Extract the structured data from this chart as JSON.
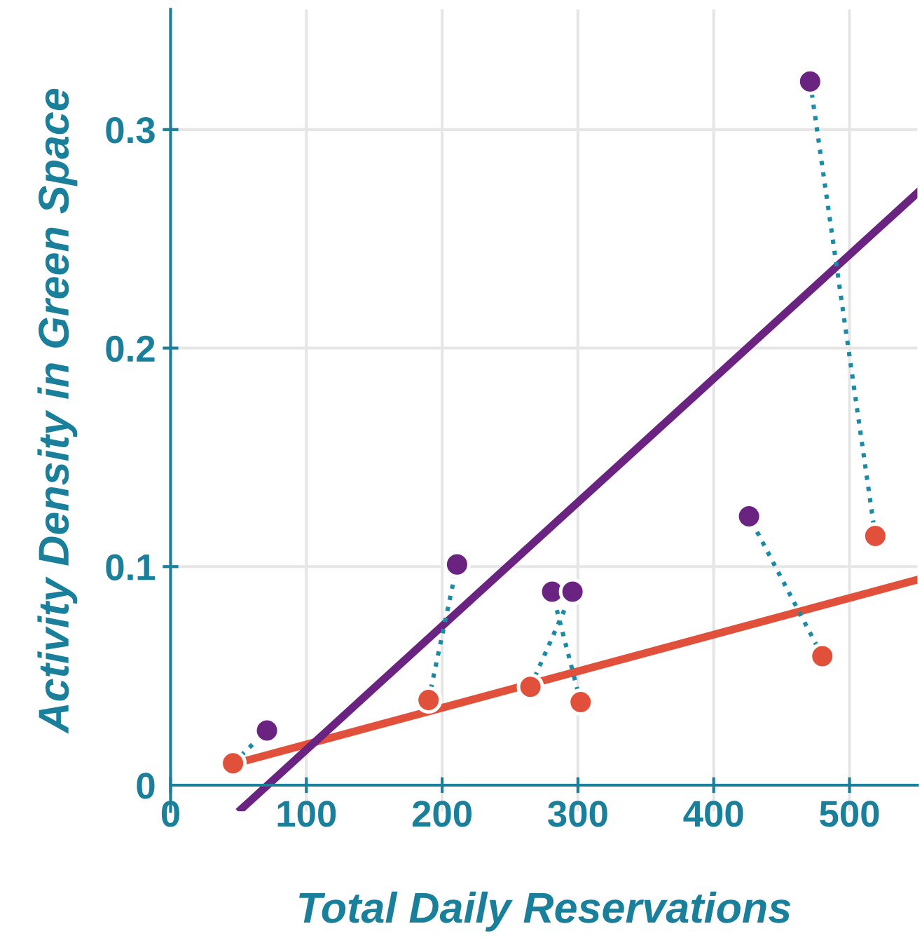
{
  "chart_data": {
    "type": "scatter",
    "xlabel": "Total Daily Reservations",
    "ylabel": "Activity Density in Green Space",
    "xlim": [
      0,
      550
    ],
    "ylim": [
      -0.012,
      0.355
    ],
    "xticks": [
      0,
      100,
      200,
      300,
      400,
      500
    ],
    "yticks": [
      0,
      0.1,
      0.2,
      0.3
    ],
    "grid": true,
    "marker": "circle",
    "series": [
      {
        "type": "line",
        "color": "#1b8aa6",
        "line_style": "dotted",
        "marker": "none",
        "x": [
          46,
          71
        ],
        "values": [
          0.01,
          0.025
        ]
      },
      {
        "type": "line",
        "color": "#1b8aa6",
        "line_style": "dotted",
        "marker": "none",
        "x": [
          190,
          211
        ],
        "values": [
          0.039,
          0.101
        ]
      },
      {
        "type": "line",
        "color": "#1b8aa6",
        "line_style": "dotted",
        "marker": "none",
        "x": [
          265,
          296
        ],
        "values": [
          0.045,
          0.0885
        ]
      },
      {
        "type": "line",
        "color": "#1b8aa6",
        "line_style": "dotted",
        "marker": "none",
        "x": [
          302,
          281
        ],
        "values": [
          0.038,
          0.0885
        ]
      },
      {
        "type": "line",
        "color": "#1b8aa6",
        "line_style": "dotted",
        "marker": "none",
        "x": [
          480,
          426
        ],
        "values": [
          0.059,
          0.123
        ]
      },
      {
        "type": "line",
        "color": "#1b8aa6",
        "line_style": "dotted",
        "marker": "none",
        "x": [
          519,
          471
        ],
        "values": [
          0.114,
          0.322
        ]
      },
      {
        "type": "line",
        "color": "#e0503a",
        "line_style": "solid",
        "marker": "none",
        "x": [
          46,
          550
        ],
        "values": [
          0.0096,
          0.094
        ]
      },
      {
        "type": "line",
        "color": "#6b2382",
        "line_style": "solid",
        "marker": "none",
        "x": [
          52,
          550
        ],
        "values": [
          -0.011,
          0.271
        ]
      },
      {
        "color": "#e0503a",
        "x": [
          46,
          190,
          265,
          302,
          480,
          519
        ],
        "values": [
          0.01,
          0.039,
          0.045,
          0.038,
          0.059,
          0.114
        ]
      },
      {
        "color": "#6b2382",
        "x": [
          71,
          211,
          281,
          296,
          426,
          471
        ],
        "values": [
          0.025,
          0.101,
          0.0885,
          0.0885,
          0.123,
          0.322
        ]
      }
    ]
  }
}
